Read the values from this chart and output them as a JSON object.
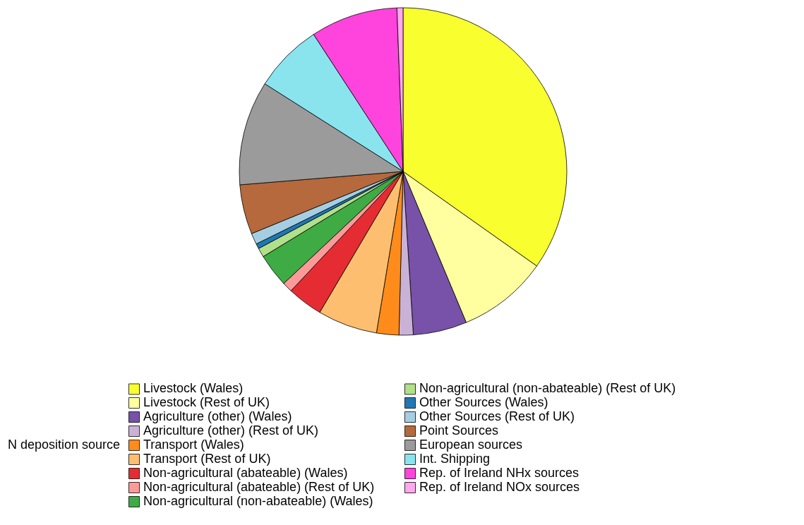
{
  "chart_data": {
    "type": "pie",
    "legend_title": "N deposition source",
    "legend": "bottom",
    "categories": [
      "Livestock (Wales)",
      "Livestock (Rest of UK)",
      "Agriculture (other) (Wales)",
      "Agriculture (other) (Rest of UK)",
      "Transport (Wales)",
      "Transport (Rest of UK)",
      "Non-agricultural (abateable) (Wales)",
      "Non-agricultural (abateable) (Rest of UK)",
      "Non-agricultural (non-abateable) (Wales)",
      "Non-agricultural (non-abateable) (Rest of UK)",
      "Other Sources (Wales)",
      "Other Sources (Rest of UK)",
      "Point Sources",
      "European sources",
      "Int. Shipping",
      "Rep. of Ireland NHx sources",
      "Rep. of Ireland NOx sources"
    ],
    "values": [
      34.8,
      8.9,
      5.3,
      1.4,
      2.2,
      5.9,
      3.5,
      1.0,
      3.3,
      0.9,
      0.5,
      1.1,
      4.9,
      10.3,
      6.8,
      8.6,
      0.6
    ],
    "colors": [
      "#f9ff2e",
      "#ffffa0",
      "#7851a9",
      "#cab2d6",
      "#ff8c1a",
      "#fdbf6f",
      "#e52c33",
      "#fb9a99",
      "#3fab44",
      "#b2df8a",
      "#1f78b4",
      "#a6cee3",
      "#b5693c",
      "#9b9b9b",
      "#8ae4ee",
      "#ff44dd",
      "#ffa8ee"
    ]
  }
}
